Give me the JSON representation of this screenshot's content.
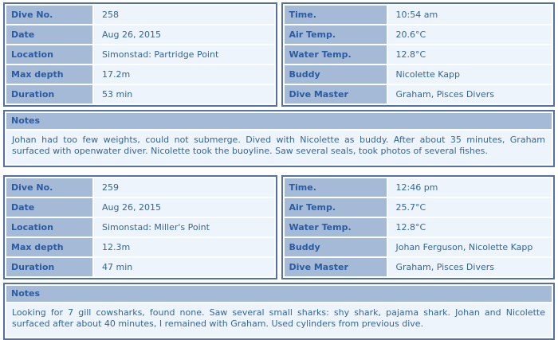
{
  "dive_log": {
    "colors": {
      "border": "#54719f",
      "label_cell_bg": "#a4bad6",
      "value_cell_bg": "#eef4fb",
      "label_text": "#2b5ba1",
      "value_text": "#336699",
      "page_bg": "#ffffff"
    },
    "entries": [
      {
        "details": [
          {
            "label": "Dive No.",
            "value": "258"
          },
          {
            "label": "Date",
            "value": "Aug 26, 2015"
          },
          {
            "label": "Location",
            "value": "Simonstad: Partridge Point"
          },
          {
            "label": "Max depth",
            "value": "17.2m"
          },
          {
            "label": "Duration",
            "value": "53 min"
          }
        ],
        "conditions": [
          {
            "label": "Time.",
            "value": "10:54 am"
          },
          {
            "label": "Air Temp.",
            "value": "20.6°C"
          },
          {
            "label": "Water Temp.",
            "value": "12.8°C"
          },
          {
            "label": "Buddy",
            "value": "Nicolette Kapp"
          },
          {
            "label": "Dive Master",
            "value": "Graham, Pisces Divers"
          }
        ],
        "notes_label": "Notes",
        "notes_text": "Johan had too few weights, could not submerge. Dived with Nicolette as buddy. After about 35 minutes, Graham surfaced with openwater diver. Nicolette took the buoyline. Saw several seals, took photos of several fishes."
      },
      {
        "details": [
          {
            "label": "Dive No.",
            "value": "259"
          },
          {
            "label": "Date",
            "value": "Aug 26, 2015"
          },
          {
            "label": "Location",
            "value": "Simonstad: Miller's Point"
          },
          {
            "label": "Max depth",
            "value": "12.3m"
          },
          {
            "label": "Duration",
            "value": "47 min"
          }
        ],
        "conditions": [
          {
            "label": "Time.",
            "value": "12:46 pm"
          },
          {
            "label": "Air Temp.",
            "value": "25.7°C"
          },
          {
            "label": "Water Temp.",
            "value": "12.8°C"
          },
          {
            "label": "Buddy",
            "value": "Johan Ferguson, Nicolette Kapp"
          },
          {
            "label": "Dive Master",
            "value": "Graham, Pisces Divers"
          }
        ],
        "notes_label": "Notes",
        "notes_text": "Looking for 7 gill cowsharks, found none. Saw several small sharks: shy shark, pajama shark. Johan and Nicolette surfaced after about 40 minutes, I remained with Graham. Used cylinders from previous dive."
      }
    ]
  }
}
